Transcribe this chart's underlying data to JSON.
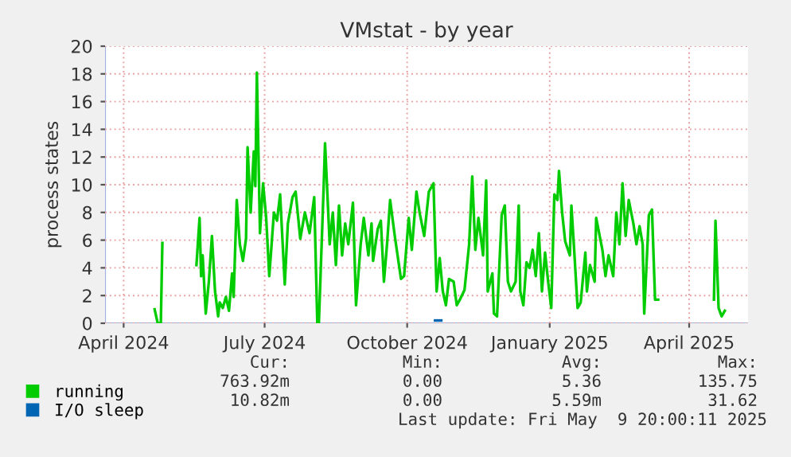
{
  "chart_data": {
    "type": "line",
    "title": "VMstat - by year",
    "ylabel": "process states",
    "xlim": [
      "2024-03-20",
      "2025-05-09"
    ],
    "xticks": [
      {
        "value": "2024-04-01",
        "label": "April 2024"
      },
      {
        "value": "2024-07-01",
        "label": "July 2024"
      },
      {
        "value": "2024-10-01",
        "label": "October 2024"
      },
      {
        "value": "2025-01-01",
        "label": "January 2025"
      },
      {
        "value": "2025-04-01",
        "label": "April 2025"
      }
    ],
    "ylim": [
      0,
      20
    ],
    "yticks": [
      0,
      2,
      4,
      6,
      8,
      10,
      12,
      14,
      16,
      18,
      20
    ],
    "grid": true,
    "legend": "bottom",
    "series": [
      {
        "name": "running",
        "color": "#00cc00",
        "x": [
          "2024-04-21",
          "2024-04-23",
          "2024-04-25",
          "2024-04-26",
          "2024-04-28",
          "2024-05-18",
          "2024-05-20",
          "2024-05-21",
          "2024-05-22",
          "2024-05-24",
          "2024-05-26",
          "2024-05-28",
          "2024-05-30",
          "2024-06-01",
          "2024-06-02",
          "2024-06-04",
          "2024-06-06",
          "2024-06-08",
          "2024-06-10",
          "2024-06-11",
          "2024-06-13",
          "2024-06-15",
          "2024-06-17",
          "2024-06-19",
          "2024-06-20",
          "2024-06-22",
          "2024-06-24",
          "2024-06-25",
          "2024-06-26",
          "2024-06-28",
          "2024-06-30",
          "2024-07-02",
          "2024-07-04",
          "2024-07-07",
          "2024-07-09",
          "2024-07-11",
          "2024-07-14",
          "2024-07-16",
          "2024-07-19",
          "2024-07-21",
          "2024-07-24",
          "2024-07-27",
          "2024-07-30",
          "2024-08-02",
          "2024-08-04",
          "2024-08-05",
          "2024-08-08",
          "2024-08-09",
          "2024-08-12",
          "2024-08-14",
          "2024-08-16",
          "2024-08-18",
          "2024-08-20",
          "2024-08-22",
          "2024-08-24",
          "2024-08-27",
          "2024-08-29",
          "2024-09-01",
          "2024-09-03",
          "2024-09-06",
          "2024-09-08",
          "2024-09-09",
          "2024-09-12",
          "2024-09-14",
          "2024-09-16",
          "2024-09-18",
          "2024-09-20",
          "2024-09-23",
          "2024-09-27",
          "2024-09-29",
          "2024-10-02",
          "2024-10-04",
          "2024-10-07",
          "2024-10-09",
          "2024-10-12",
          "2024-10-15",
          "2024-10-18",
          "2024-10-20",
          "2024-10-22",
          "2024-10-24",
          "2024-10-26",
          "2024-10-28",
          "2024-10-31",
          "2024-11-02",
          "2024-11-04",
          "2024-11-07",
          "2024-11-10",
          "2024-11-12",
          "2024-11-14",
          "2024-11-16",
          "2024-11-19",
          "2024-11-21",
          "2024-11-22",
          "2024-11-25",
          "2024-11-26",
          "2024-11-28",
          "2024-12-01",
          "2024-12-03",
          "2024-12-05",
          "2024-12-07",
          "2024-12-10",
          "2024-12-12",
          "2024-12-13",
          "2024-12-15",
          "2024-12-17",
          "2024-12-19",
          "2024-12-21",
          "2024-12-23",
          "2024-12-25",
          "2024-12-27",
          "2024-12-29",
          "2024-12-31",
          "2025-01-02",
          "2025-01-04",
          "2025-01-06",
          "2025-01-07",
          "2025-01-09",
          "2025-01-11",
          "2025-01-14",
          "2025-01-15",
          "2025-01-17",
          "2025-01-19",
          "2025-01-21",
          "2025-01-24",
          "2025-01-25",
          "2025-01-27",
          "2025-01-30",
          "2025-01-31",
          "2025-02-04",
          "2025-02-06",
          "2025-02-08",
          "2025-02-11",
          "2025-02-13",
          "2025-02-15",
          "2025-02-17",
          "2025-02-19",
          "2025-02-21",
          "2025-02-24",
          "2025-02-26",
          "2025-02-28",
          "2025-03-02",
          "2025-03-03",
          "2025-03-06",
          "2025-03-08",
          "2025-03-10",
          "2025-03-12",
          "2025-03-14",
          "2025-04-17",
          "2025-04-18",
          "2025-04-20",
          "2025-04-22",
          "2025-04-24"
        ],
        "values": [
          1.0,
          0,
          0,
          5.8,
          null,
          4.2,
          7.6,
          3.4,
          4.9,
          0.7,
          3.0,
          6.3,
          2.3,
          0.5,
          1.5,
          1.1,
          1.9,
          0.9,
          3.6,
          1.9,
          8.9,
          5.7,
          4.5,
          6.1,
          12.7,
          8.0,
          12.4,
          9.9,
          18.1,
          6.5,
          10.1,
          7.6,
          3.4,
          8.0,
          7.4,
          9.3,
          2.8,
          7.2,
          9.1,
          9.5,
          6.1,
          8.0,
          6.5,
          9.1,
          0,
          0,
          9.5,
          13.0,
          5.7,
          8.0,
          4.2,
          8.5,
          4.9,
          7.2,
          5.7,
          8.7,
          1.3,
          5.7,
          7.6,
          4.9,
          7.2,
          4.5,
          6.8,
          7.4,
          3.0,
          5.7,
          8.9,
          6.3,
          3.2,
          3.4,
          7.6,
          5.3,
          9.5,
          8.0,
          6.3,
          9.5,
          10.1,
          2.3,
          4.7,
          2.3,
          1.3,
          3.2,
          3.0,
          1.3,
          1.7,
          2.4,
          5.7,
          10.6,
          5.3,
          7.6,
          4.9,
          10.3,
          2.3,
          3.6,
          0.7,
          0.5,
          7.8,
          8.5,
          3.0,
          2.3,
          3.0,
          8.5,
          2.3,
          1.3,
          4.4,
          4.0,
          5.3,
          3.4,
          6.5,
          2.3,
          5.1,
          3.0,
          1.1,
          9.3,
          8.9,
          11.0,
          8.0,
          5.9,
          4.9,
          8.5,
          4.9,
          1.1,
          1.5,
          5.1,
          2.3,
          4.2,
          3.0,
          7.6,
          5.3,
          3.4,
          4.9,
          3.4,
          8.0,
          5.7,
          10.1,
          6.3,
          8.9,
          7.2,
          5.7,
          7.0,
          5.7,
          0.7,
          7.8,
          8.2,
          1.7,
          1.7,
          null,
          1.7,
          7.4,
          1.1,
          0.5,
          0.9
        ]
      },
      {
        "name": "I/O sleep",
        "color": "#0066b3",
        "x": [
          "2024-10-19",
          "2024-10-23"
        ],
        "values": [
          0.2,
          0.2
        ]
      }
    ],
    "annotations": [
      "Cur:",
      "Min:",
      "Avg:",
      "Max:",
      "763.92m",
      "0.00",
      "5.36",
      "135.75",
      "10.82m",
      "0.00",
      "5.59m",
      "31.62",
      "Last update: Fri May  9 20:00:11 2025"
    ]
  }
}
